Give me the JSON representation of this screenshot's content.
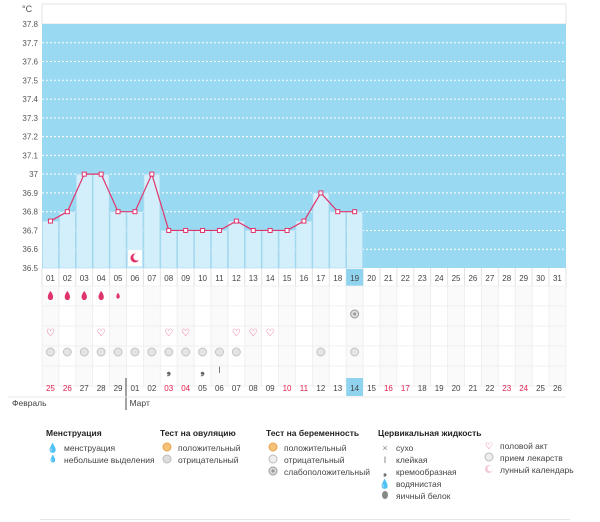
{
  "chart_data": {
    "type": "line",
    "title": "",
    "xlabel": "",
    "ylabel": "°C",
    "ylim": [
      36.5,
      37.8
    ],
    "y_ticks": [
      "36.5",
      "36.6",
      "36.7",
      "36.8",
      "36.9",
      "37",
      "37.1",
      "37.2",
      "37.3",
      "37.4",
      "37.5",
      "37.6",
      "37.7",
      "37.8"
    ],
    "cycle_days": [
      "01",
      "02",
      "03",
      "04",
      "05",
      "06",
      "07",
      "08",
      "09",
      "10",
      "11",
      "12",
      "13",
      "14",
      "15",
      "16",
      "17",
      "18",
      "19",
      "20",
      "21",
      "22",
      "23",
      "24",
      "25",
      "26",
      "27",
      "28",
      "29",
      "30",
      "31"
    ],
    "current_cycle_day": "19",
    "series": [
      {
        "name": "temperature",
        "values": [
          36.75,
          36.8,
          37.0,
          37.0,
          36.8,
          36.8,
          37.0,
          36.7,
          36.7,
          36.7,
          36.7,
          36.75,
          36.7,
          36.7,
          36.7,
          36.75,
          36.9,
          36.8,
          36.8
        ]
      }
    ]
  },
  "moon_day_index": 5,
  "rows": {
    "menstruation": [
      "heavy",
      "heavy",
      "heavy",
      "heavy",
      "light"
    ],
    "intercourse_days": [
      1,
      4,
      8,
      9,
      12,
      13,
      14
    ],
    "medicine_days": [
      1,
      2,
      3,
      4,
      5,
      6,
      7,
      8,
      9,
      10,
      11,
      12,
      17,
      19
    ],
    "fluid": {
      "8": "creamy",
      "10": "creamy",
      "11": "sticky"
    },
    "pregnancy_test": {
      "19": "weak"
    }
  },
  "calendar": {
    "dates": [
      "25",
      "26",
      "27",
      "28",
      "29",
      "01",
      "02",
      "03",
      "04",
      "05",
      "06",
      "07",
      "08",
      "09",
      "10",
      "11",
      "12",
      "13",
      "14",
      "15",
      "16",
      "17",
      "18",
      "19",
      "20",
      "21",
      "22",
      "23",
      "24",
      "25",
      "26"
    ],
    "red_dates_idx": [
      0,
      1,
      7,
      8,
      14,
      15,
      20,
      21,
      27,
      28
    ],
    "today_idx": 18,
    "month_feb": "Февраль",
    "month_mar": "Март"
  },
  "legend": {
    "menstruation": {
      "title": "Менструация",
      "items": [
        "менструация",
        "небольшие выделения"
      ]
    },
    "ovulation": {
      "title": "Тест на овуляцию",
      "items": [
        "положительный",
        "отрицательный"
      ]
    },
    "pregnancy": {
      "title": "Тест на беременность",
      "items": [
        "положительный",
        "отрицательный",
        "слабоположительный"
      ]
    },
    "fluid": {
      "title": "Цервикальная жидкость",
      "items": [
        "сухо",
        "клейкая",
        "кремообразная",
        "водянистая",
        "яичный белок"
      ]
    },
    "other": {
      "items": [
        "половой акт",
        "прием лекарств",
        "лунный календарь"
      ]
    }
  },
  "colors": {
    "fill": "#9ad9f2",
    "bar": "#d3effb",
    "bar_border": "#a8d8ee",
    "line": "#e0356b",
    "today": "#8fd3ef",
    "red": "#e02050"
  }
}
